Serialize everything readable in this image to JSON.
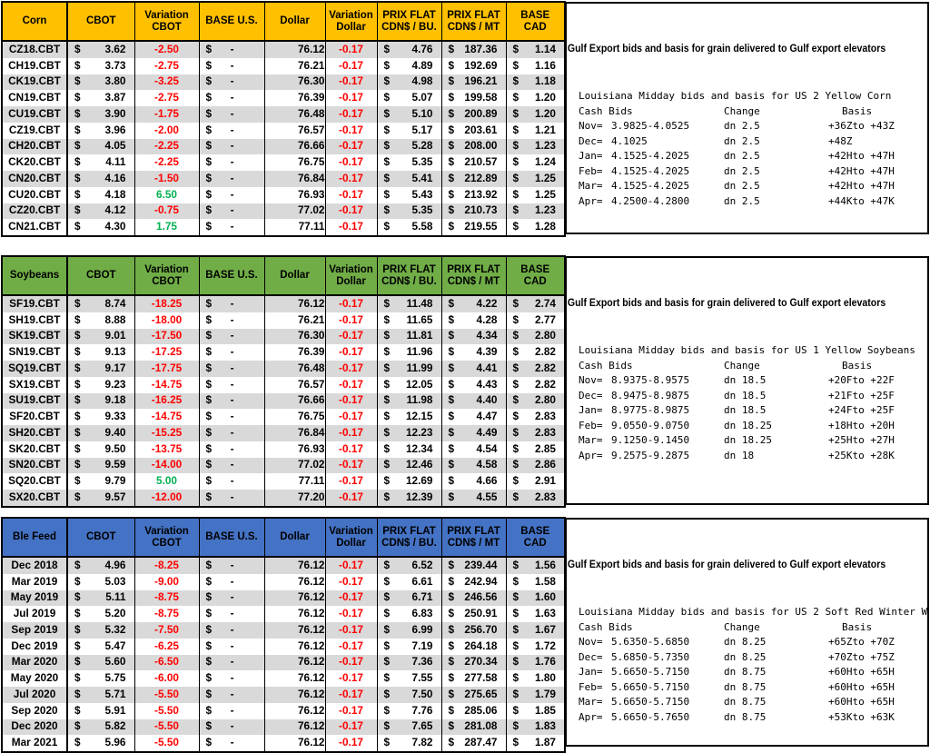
{
  "palette": {
    "negative": "#FF0000",
    "positive": "#00B050",
    "stripe": "#D9D9D9",
    "border": "#000000"
  },
  "shared": {
    "column_headers": [
      "CBOT",
      "Variation\nCBOT",
      "BASE U.S.",
      "Dollar",
      "Variation\nDollar",
      "PRIX FLAT\nCDN$ / BU.",
      "PRIX FLAT\nCDN$ / MT",
      "BASE CAD"
    ],
    "currency_symbol": "$",
    "empty_value": "-"
  },
  "tables": [
    {
      "title": "Corn",
      "accent": "#FFC000",
      "rows": [
        [
          "CZ18.CBT",
          "3.62",
          "-2.50",
          "76.12",
          "-0.17",
          "4.76",
          "187.36",
          "1.14"
        ],
        [
          "CH19.CBT",
          "3.73",
          "-2.75",
          "76.21",
          "-0.17",
          "4.89",
          "192.69",
          "1.16"
        ],
        [
          "CK19.CBT",
          "3.80",
          "-3.25",
          "76.30",
          "-0.17",
          "4.98",
          "196.21",
          "1.18"
        ],
        [
          "CN19.CBT",
          "3.87",
          "-2.75",
          "76.39",
          "-0.17",
          "5.07",
          "199.58",
          "1.20"
        ],
        [
          "CU19.CBT",
          "3.90",
          "-1.75",
          "76.48",
          "-0.17",
          "5.10",
          "200.89",
          "1.20"
        ],
        [
          "CZ19.CBT",
          "3.96",
          "-2.00",
          "76.57",
          "-0.17",
          "5.17",
          "203.61",
          "1.21"
        ],
        [
          "CH20.CBT",
          "4.05",
          "-2.25",
          "76.66",
          "-0.17",
          "5.28",
          "208.00",
          "1.23"
        ],
        [
          "CK20.CBT",
          "4.11",
          "-2.25",
          "76.75",
          "-0.17",
          "5.35",
          "210.57",
          "1.24"
        ],
        [
          "CN20.CBT",
          "4.16",
          "-1.50",
          "76.84",
          "-0.17",
          "5.41",
          "212.89",
          "1.25"
        ],
        [
          "CU20.CBT",
          "4.18",
          "6.50",
          "76.93",
          "-0.17",
          "5.43",
          "213.92",
          "1.25"
        ],
        [
          "CZ20.CBT",
          "4.12",
          "-0.75",
          "77.02",
          "-0.17",
          "5.35",
          "210.73",
          "1.23"
        ],
        [
          "CN21.CBT",
          "4.30",
          "1.75",
          "77.11",
          "-0.17",
          "5.58",
          "219.55",
          "1.28"
        ]
      ],
      "panel": {
        "title": "Gulf Export bids and basis for grain delivered to Gulf export elevators",
        "subtitle": "Louisiana Midday bids and basis for US 2 Yellow Corn",
        "cash_bids_label": "Cash Bids",
        "change_label": "Change",
        "basis_label": "Basis",
        "bids": [
          [
            "Nov=",
            "3.9825-4.0525",
            "dn 2.5",
            "+36Zto +43Z"
          ],
          [
            "Dec=",
            "4.1025",
            "dn 2.5",
            "+48Z"
          ],
          [
            "Jan=",
            "4.1525-4.2025",
            "dn 2.5",
            "+42Hto +47H"
          ],
          [
            "Feb=",
            "4.1525-4.2025",
            "dn 2.5",
            "+42Hto +47H"
          ],
          [
            "Mar=",
            "4.1525-4.2025",
            "dn 2.5",
            "+42Hto +47H"
          ],
          [
            "Apr=",
            "4.2500-4.2800",
            "dn 2.5",
            "+44Kto +47K"
          ]
        ]
      }
    },
    {
      "title": "Soybeans",
      "accent": "#70AD47",
      "rows": [
        [
          "SF19.CBT",
          "8.74",
          "-18.25",
          "76.12",
          "-0.17",
          "11.48",
          "4.22",
          "2.74"
        ],
        [
          "SH19.CBT",
          "8.88",
          "-18.00",
          "76.21",
          "-0.17",
          "11.65",
          "4.28",
          "2.77"
        ],
        [
          "SK19.CBT",
          "9.01",
          "-17.50",
          "76.30",
          "-0.17",
          "11.81",
          "4.34",
          "2.80"
        ],
        [
          "SN19.CBT",
          "9.13",
          "-17.25",
          "76.39",
          "-0.17",
          "11.96",
          "4.39",
          "2.82"
        ],
        [
          "SQ19.CBT",
          "9.17",
          "-17.75",
          "76.48",
          "-0.17",
          "11.99",
          "4.41",
          "2.82"
        ],
        [
          "SX19.CBT",
          "9.23",
          "-14.75",
          "76.57",
          "-0.17",
          "12.05",
          "4.43",
          "2.82"
        ],
        [
          "SU19.CBT",
          "9.18",
          "-16.25",
          "76.66",
          "-0.17",
          "11.98",
          "4.40",
          "2.80"
        ],
        [
          "SF20.CBT",
          "9.33",
          "-14.75",
          "76.75",
          "-0.17",
          "12.15",
          "4.47",
          "2.83"
        ],
        [
          "SH20.CBT",
          "9.40",
          "-15.25",
          "76.84",
          "-0.17",
          "12.23",
          "4.49",
          "2.83"
        ],
        [
          "SK20.CBT",
          "9.50",
          "-13.75",
          "76.93",
          "-0.17",
          "12.34",
          "4.54",
          "2.85"
        ],
        [
          "SN20.CBT",
          "9.59",
          "-14.00",
          "77.02",
          "-0.17",
          "12.46",
          "4.58",
          "2.86"
        ],
        [
          "SQ20.CBT",
          "9.79",
          "5.00",
          "77.11",
          "-0.17",
          "12.69",
          "4.66",
          "2.91"
        ],
        [
          "SX20.CBT",
          "9.57",
          "-12.00",
          "77.20",
          "-0.17",
          "12.39",
          "4.55",
          "2.83"
        ]
      ],
      "panel": {
        "title": "Gulf Export bids and basis for grain delivered to Gulf export elevators",
        "subtitle": "Louisiana Midday bids and basis for US 1 Yellow Soybeans",
        "cash_bids_label": "Cash Bids",
        "change_label": "Change",
        "basis_label": "Basis",
        "bids": [
          [
            "Nov=",
            "8.9375-8.9575",
            "dn 18.5",
            "+20Fto +22F"
          ],
          [
            "Dec=",
            "8.9475-8.9875",
            "dn 18.5",
            "+21Fto +25F"
          ],
          [
            "Jan=",
            "8.9775-8.9875",
            "dn 18.5",
            "+24Fto +25F"
          ],
          [
            "Feb=",
            "9.0550-9.0750",
            "dn 18.25",
            "+18Hto +20H"
          ],
          [
            "Mar=",
            "9.1250-9.1450",
            "dn 18.25",
            "+25Hto +27H"
          ],
          [
            "Apr=",
            "9.2575-9.2875",
            "dn 18",
            "+25Kto +28K"
          ]
        ]
      }
    },
    {
      "title": "Ble Feed",
      "accent": "#4472C4",
      "rows": [
        [
          "Dec 2018",
          "4.96",
          "-8.25",
          "76.12",
          "-0.17",
          "6.52",
          "239.44",
          "1.56"
        ],
        [
          "Mar 2019",
          "5.03",
          "-9.00",
          "76.12",
          "-0.17",
          "6.61",
          "242.94",
          "1.58"
        ],
        [
          "May 2019",
          "5.11",
          "-8.75",
          "76.12",
          "-0.17",
          "6.71",
          "246.56",
          "1.60"
        ],
        [
          "Jul 2019",
          "5.20",
          "-8.75",
          "76.12",
          "-0.17",
          "6.83",
          "250.91",
          "1.63"
        ],
        [
          "Sep 2019",
          "5.32",
          "-7.50",
          "76.12",
          "-0.17",
          "6.99",
          "256.70",
          "1.67"
        ],
        [
          "Dec 2019",
          "5.47",
          "-6.25",
          "76.12",
          "-0.17",
          "7.19",
          "264.18",
          "1.72"
        ],
        [
          "Mar 2020",
          "5.60",
          "-6.50",
          "76.12",
          "-0.17",
          "7.36",
          "270.34",
          "1.76"
        ],
        [
          "May 2020",
          "5.75",
          "-6.00",
          "76.12",
          "-0.17",
          "7.55",
          "277.58",
          "1.80"
        ],
        [
          "Jul 2020",
          "5.71",
          "-5.50",
          "76.12",
          "-0.17",
          "7.50",
          "275.65",
          "1.79"
        ],
        [
          "Sep 2020",
          "5.91",
          "-5.50",
          "76.12",
          "-0.17",
          "7.76",
          "285.06",
          "1.85"
        ],
        [
          "Dec 2020",
          "5.82",
          "-5.50",
          "76.12",
          "-0.17",
          "7.65",
          "281.08",
          "1.83"
        ],
        [
          "Mar 2021",
          "5.96",
          "-5.50",
          "76.12",
          "-0.17",
          "7.82",
          "287.47",
          "1.87"
        ]
      ],
      "panel": {
        "title": "Gulf Export bids and basis for grain delivered to Gulf export elevators",
        "subtitle": "Louisiana Midday bids and basis for US 2 Soft Red Winter W",
        "cash_bids_label": "Cash Bids",
        "change_label": "Change",
        "basis_label": "Basis",
        "bids": [
          [
            "Nov=",
            "5.6350-5.6850",
            "dn 8.25",
            "+65Zto +70Z"
          ],
          [
            "Dec=",
            "5.6850-5.7350",
            "dn 8.25",
            "+70Zto +75Z"
          ],
          [
            "Jan=",
            "5.6650-5.7150",
            "dn 8.75",
            "+60Hto +65H"
          ],
          [
            "Feb=",
            "5.6650-5.7150",
            "dn 8.75",
            "+60Hto +65H"
          ],
          [
            "Mar=",
            "5.6650-5.7150",
            "dn 8.75",
            "+60Hto +65H"
          ],
          [
            "Apr=",
            "5.6650-5.7650",
            "dn 8.75",
            "+53Kto +63K"
          ]
        ]
      }
    }
  ]
}
